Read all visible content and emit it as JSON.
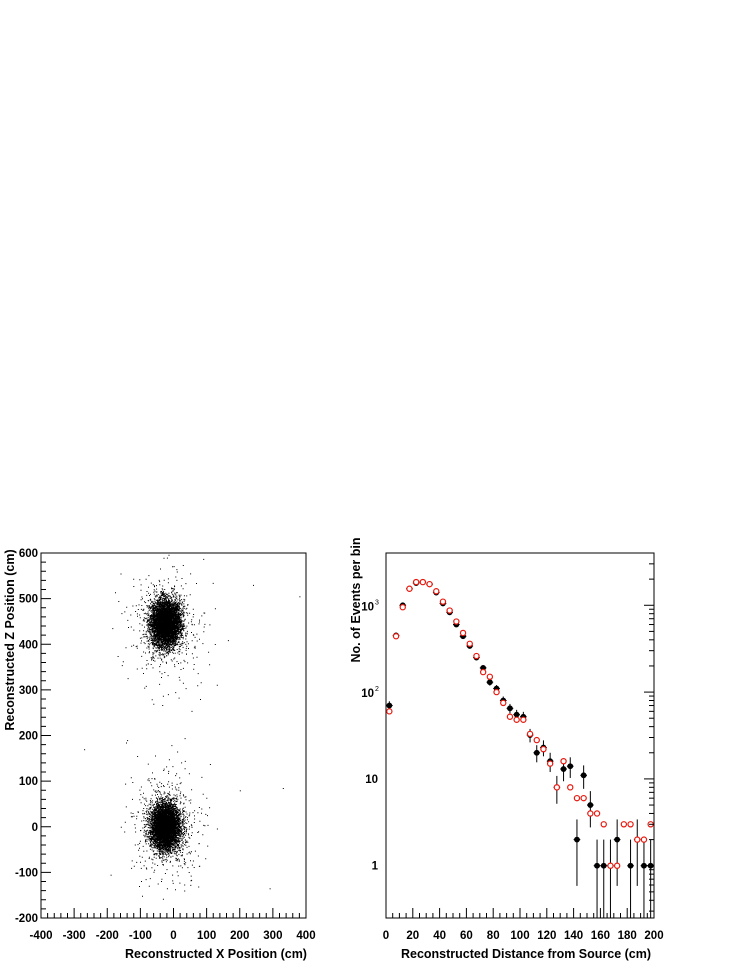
{
  "chart_data": [
    {
      "type": "scatter",
      "title": "",
      "xlabel": "Reconstructed X Position (cm)",
      "ylabel": "Reconstructed Z Position (cm)",
      "xlim": [
        -400,
        400
      ],
      "ylim": [
        -200,
        600
      ],
      "x_ticks": [
        "-400",
        "-300",
        "-200",
        "-100",
        "0",
        "100",
        "200",
        "300",
        "400"
      ],
      "y_ticks": [
        "-200",
        "-100",
        "0",
        "100",
        "200",
        "300",
        "400",
        "500",
        "600"
      ],
      "marker_color": "#000000",
      "clusters": [
        {
          "center_x": -25,
          "center_z": 445,
          "sigma_x": 22,
          "sigma_z": 25,
          "points": 6000
        },
        {
          "center_x": -25,
          "center_z": 0,
          "sigma_x": 22,
          "sigma_z": 25,
          "points": 6000
        }
      ]
    },
    {
      "type": "scatter",
      "title": "",
      "xlabel": "Reconstructed Distance from Source (cm)",
      "ylabel": "No. of Events per bin",
      "xlim": [
        0,
        200
      ],
      "ylim": [
        0.25,
        4000
      ],
      "y_scale": "log",
      "x_ticks": [
        "0",
        "20",
        "40",
        "60",
        "80",
        "100",
        "120",
        "140",
        "160",
        "180",
        "200"
      ],
      "y_ticks": [
        {
          "value": 1,
          "label": "1"
        },
        {
          "value": 10,
          "label": "10"
        },
        {
          "value": 100,
          "label": "10",
          "exp": "2"
        },
        {
          "value": 1000,
          "label": "10",
          "exp": "3"
        }
      ],
      "series": [
        {
          "style": "filled",
          "color": "#000000",
          "x": [
            2.5,
            7.5,
            12.5,
            17.5,
            22.5,
            27.5,
            32.5,
            37.5,
            42.5,
            47.5,
            52.5,
            57.5,
            62.5,
            67.5,
            72.5,
            77.5,
            82.5,
            87.5,
            92.5,
            97.5,
            102.5,
            107.5,
            112.5,
            117.5,
            122.5,
            127.5,
            132.5,
            137.5,
            142.5,
            147.5,
            152.5,
            157.5,
            162.5,
            167.5,
            172.5,
            177.5,
            182.5,
            187.5,
            192.5,
            197.5
          ],
          "y": [
            70,
            450,
            1000,
            1550,
            1800,
            1850,
            1750,
            1400,
            1050,
            830,
            600,
            440,
            340,
            250,
            190,
            130,
            110,
            80,
            65,
            55,
            52,
            32,
            20,
            23,
            16,
            8,
            13,
            14,
            2,
            11,
            5,
            1,
            1,
            1,
            2,
            0,
            1,
            2,
            1,
            1
          ]
        },
        {
          "style": "open",
          "color": "#e8190f",
          "x": [
            2.5,
            7.5,
            12.5,
            17.5,
            22.5,
            27.5,
            32.5,
            37.5,
            42.5,
            47.5,
            52.5,
            57.5,
            62.5,
            67.5,
            72.5,
            77.5,
            82.5,
            87.5,
            92.5,
            97.5,
            102.5,
            107.5,
            112.5,
            117.5,
            122.5,
            127.5,
            132.5,
            137.5,
            142.5,
            147.5,
            152.5,
            157.5,
            162.5,
            167.5,
            172.5,
            177.5,
            182.5,
            187.5,
            192.5,
            197.5
          ],
          "y": [
            60,
            440,
            950,
            1550,
            1850,
            1850,
            1750,
            1450,
            1100,
            870,
            650,
            480,
            360,
            260,
            170,
            150,
            100,
            75,
            52,
            48,
            48,
            33,
            28,
            22,
            15,
            8,
            16,
            8,
            6,
            6,
            4,
            4,
            3,
            1,
            1,
            3,
            3,
            2,
            2,
            3
          ]
        }
      ]
    }
  ]
}
